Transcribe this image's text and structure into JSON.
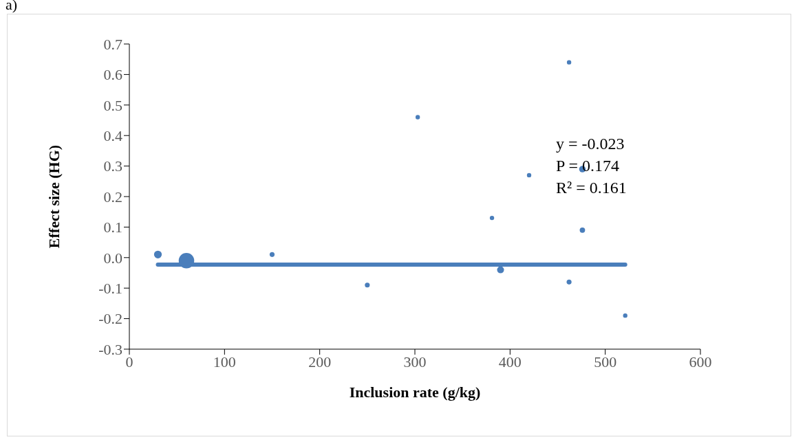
{
  "chart_data": {
    "type": "bubble",
    "title": "a)",
    "xlabel": "Inclusion rate (g/kg)",
    "ylabel": "Effect size (HG)",
    "xlim": [
      0,
      600
    ],
    "xticks": [
      0,
      100,
      200,
      300,
      400,
      500,
      600
    ],
    "ylim": [
      -0.3,
      0.7
    ],
    "yticks": [
      -0.3,
      -0.2,
      -0.1,
      {
        "value": 0,
        "label": "0.0"
      },
      0.1,
      0.2,
      0.3,
      0.4,
      0.5,
      0.6,
      0.7
    ],
    "grid": false,
    "legend": false,
    "series": [
      {
        "type": "bubble",
        "marker": "circle",
        "color": "#4a7ebb",
        "x": [
          30,
          60,
          150,
          250,
          303,
          381,
          390,
          420,
          462,
          462,
          476,
          476,
          521
        ],
        "values": [
          0.01,
          -0.01,
          0.01,
          -0.09,
          0.46,
          0.13,
          -0.04,
          0.27,
          0.64,
          -0.08,
          0.29,
          0.09,
          -0.19
        ],
        "sizes": [
          0.25,
          1,
          0.1,
          0.1,
          0.08,
          0.08,
          0.2,
          0.08,
          0.08,
          0.1,
          0.18,
          0.12,
          0.08
        ]
      },
      {
        "type": "line",
        "marker": "none",
        "color": "#4a7ebb",
        "x": [
          30,
          521
        ],
        "values": [
          -0.023,
          -0.023
        ]
      }
    ],
    "annotations": [
      "y = -0.023",
      "P = 0.174",
      "R² = 0.161"
    ]
  }
}
